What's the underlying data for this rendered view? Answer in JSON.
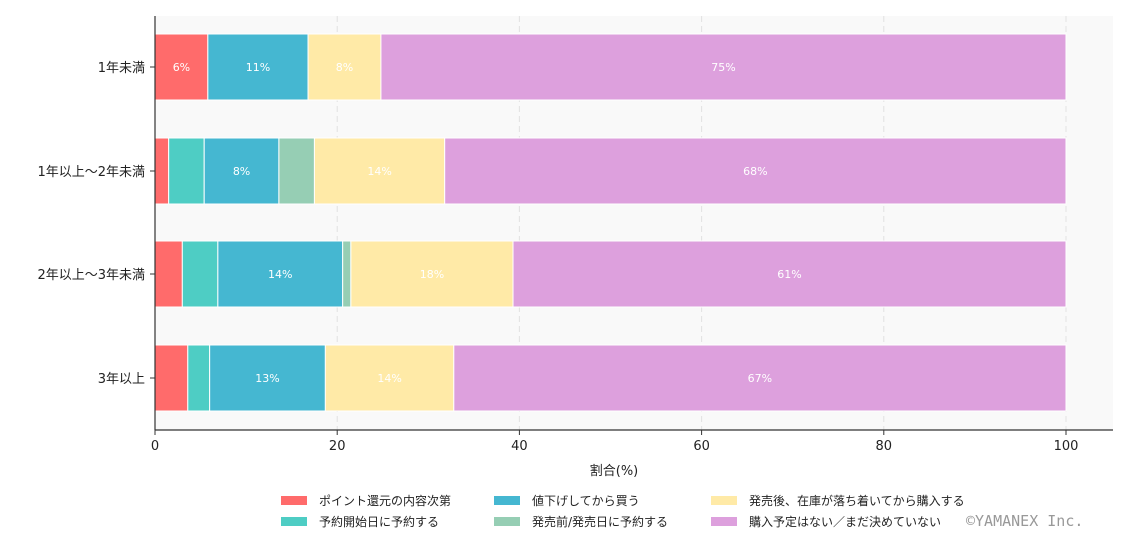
{
  "chart_data": {
    "type": "bar",
    "orientation": "horizontal",
    "stacked": true,
    "categories": [
      "1年未満",
      "1年以上〜2年未満",
      "2年以上〜3年未満",
      "3年以上"
    ],
    "series": [
      {
        "name": "ポイント還元の内容次第",
        "color": "#ff6b6b",
        "values": [
          5.8,
          1.5,
          3.0,
          3.6
        ]
      },
      {
        "name": "予約開始日に予約する",
        "color": "#4ecdc4",
        "values": [
          0,
          3.9,
          3.9,
          2.4
        ]
      },
      {
        "name": "値下げしてから買う",
        "color": "#45b7d1",
        "values": [
          11.0,
          8.2,
          13.7,
          12.7
        ]
      },
      {
        "name": "発売前/発売日に予約する",
        "color": "#96ceb4",
        "values": [
          0,
          3.9,
          0.9,
          0
        ]
      },
      {
        "name": "発売後、在庫が落ち着いてから購入する",
        "color": "#ffeaa7",
        "values": [
          8.0,
          14.3,
          17.8,
          14.1
        ]
      },
      {
        "name": "購入予定はない／まだ決めていない",
        "color": "#dda0dd",
        "values": [
          75.2,
          68.2,
          60.7,
          67.2
        ]
      }
    ],
    "data_label_format": "{v}%",
    "xlabel": "割合(%)",
    "ylabel": "",
    "xlim": [
      0,
      105
    ],
    "xticks": [
      "0",
      "20",
      "40",
      "60",
      "80",
      "100"
    ],
    "grid": "x dashed",
    "legend": "bottom"
  },
  "watermark": "©YAMANEX Inc."
}
